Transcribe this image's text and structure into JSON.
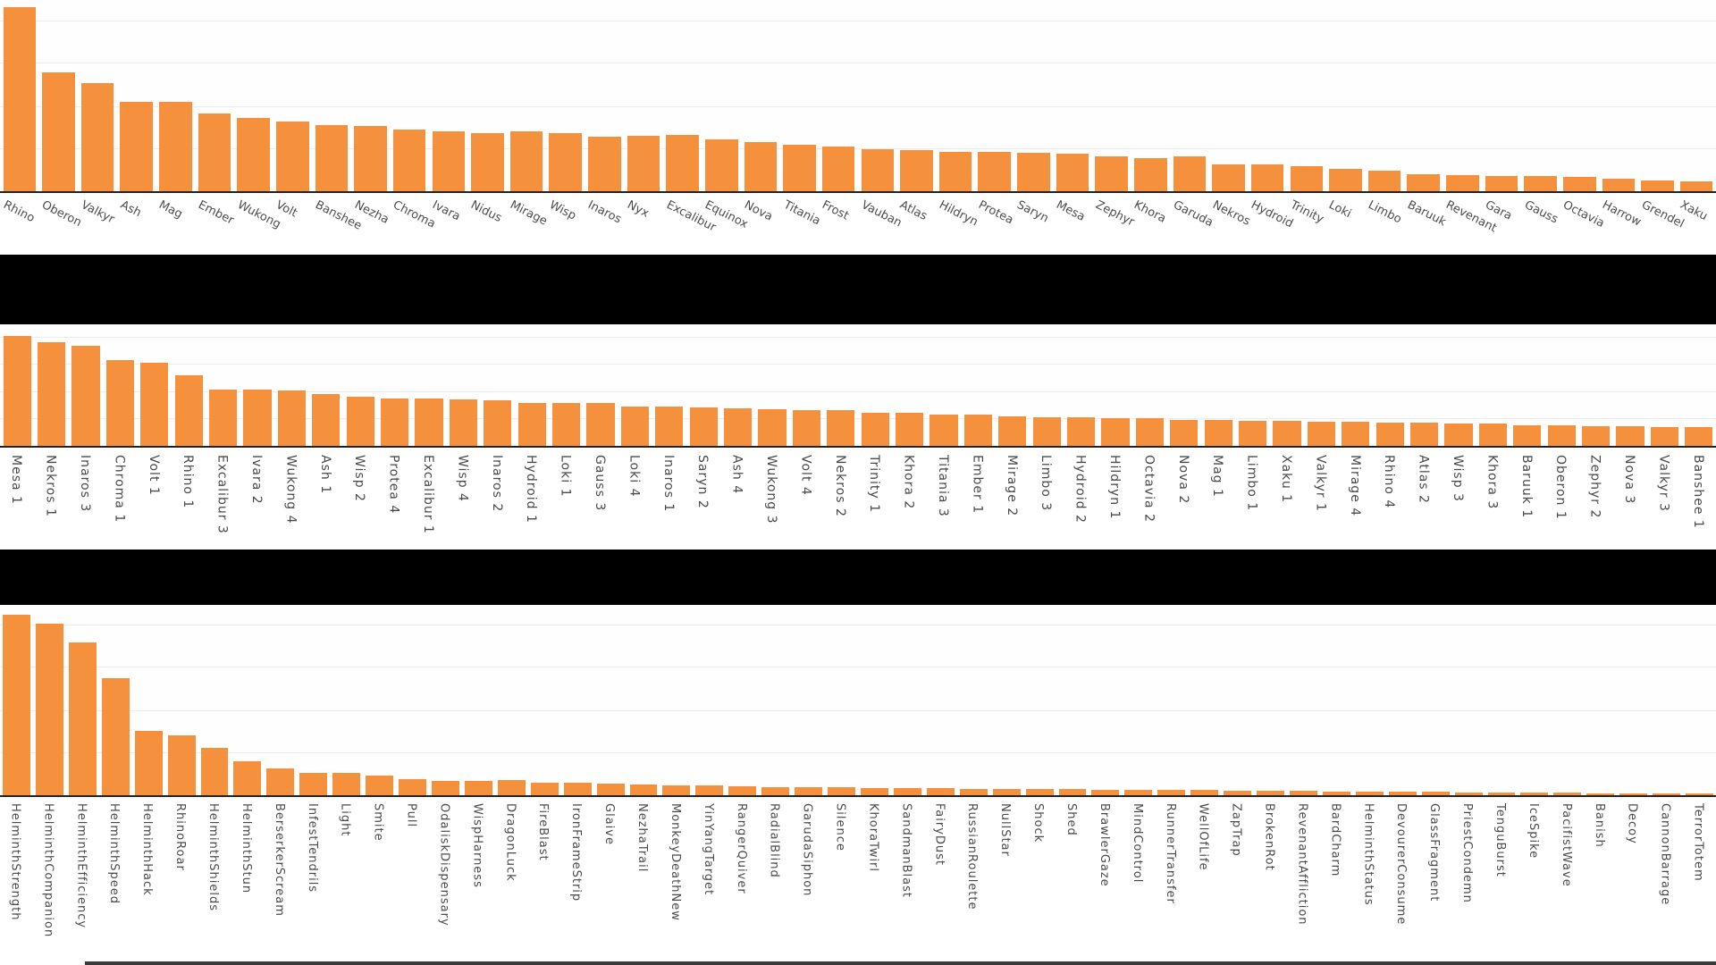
{
  "page": {
    "bar_color": "#F5913C",
    "axis_color": "#222222",
    "tick_label_color": "#4d4d4d",
    "redaction_band_color": "#000000",
    "background_color": "#ffffff",
    "note_axis_values": "no y-axis tick labels or chart titles visible; chart titles appear blacked out by solid bands"
  },
  "chart_data": [
    {
      "type": "bar",
      "title": "",
      "xlabel": "",
      "ylabel": "",
      "units": "relative bar height, percent of plot area (no y-axis labels visible)",
      "legend": "none",
      "grid": "faint horizontal gridlines",
      "tick_style": "rotated ~27deg",
      "categories": [
        "Rhino",
        "Oberon",
        "Valkyr",
        "Ash",
        "Mag",
        "Ember",
        "Wukong",
        "Volt",
        "Banshee",
        "Nezha",
        "Chroma",
        "Ivara",
        "Nidus",
        "Mirage",
        "Wisp",
        "Inaros",
        "Nyx",
        "Excalibur",
        "Equinox",
        "Nova",
        "Titania",
        "Frost",
        "Vauban",
        "Atlas",
        "Hildryn",
        "Protea",
        "Saryn",
        "Mesa",
        "Zephyr",
        "Khora",
        "Garuda",
        "Nekros",
        "Hydroid",
        "Trinity",
        "Loki",
        "Limbo",
        "Baruuk",
        "Revenant",
        "Gara",
        "Gauss",
        "Octavia",
        "Harrow",
        "Grendel",
        "Xaku"
      ],
      "values": [
        96.3,
        62.0,
        56.5,
        46.8,
        46.8,
        40.7,
        38.4,
        36.6,
        34.7,
        34.3,
        32.4,
        31.5,
        30.6,
        31.5,
        30.6,
        28.7,
        29.2,
        29.6,
        27.3,
        25.9,
        24.1,
        23.6,
        22.2,
        21.3,
        20.8,
        20.8,
        19.9,
        19.4,
        18.1,
        17.1,
        18.1,
        13.9,
        13.9,
        13.0,
        11.6,
        10.6,
        8.8,
        8.3,
        7.9,
        7.9,
        7.4,
        6.5,
        5.6,
        5.1
      ]
    },
    {
      "type": "bar",
      "title": "",
      "xlabel": "",
      "ylabel": "",
      "units": "relative bar height, percent of plot area (no y-axis labels visible)",
      "legend": "none",
      "grid": "faint horizontal gridlines",
      "tick_style": "vertical, reading downward",
      "categories": [
        "Mesa 1",
        "Nekros 1",
        "Inaros 3",
        "Chroma 1",
        "Volt 1",
        "Rhino 1",
        "Excalibur 3",
        "Ivara 2",
        "Wukong 4",
        "Ash 1",
        "Wisp 2",
        "Protea 4",
        "Excalibur 1",
        "Wisp 4",
        "Inaros 2",
        "Hydroid 1",
        "Loki 1",
        "Gauss 3",
        "Loki 4",
        "Inaros 1",
        "Saryn 2",
        "Ash 4",
        "Wukong 3",
        "Volt 4",
        "Nekros 2",
        "Trinity 1",
        "Khora 2",
        "Titania 3",
        "Ember 1",
        "Mirage 2",
        "Limbo 3",
        "Hydroid 2",
        "Hildryn 1",
        "Octavia 2",
        "Nova 2",
        "Mag 1",
        "Limbo 1",
        "Xaku 1",
        "Valkyr 1",
        "Mirage 4",
        "Rhino 4",
        "Atlas 2",
        "Wisp 3",
        "Khora 3",
        "Baruuk 1",
        "Oberon 1",
        "Zephyr 2",
        "Nova 3",
        "Valkyr 3",
        "Banshee 1"
      ],
      "values": [
        90.6,
        85.5,
        82.6,
        70.3,
        68.1,
        58.0,
        46.4,
        46.4,
        45.7,
        42.8,
        40.6,
        39.1,
        39.1,
        38.4,
        37.7,
        35.5,
        35.5,
        35.5,
        32.6,
        32.6,
        31.9,
        31.2,
        30.4,
        29.7,
        29.7,
        27.5,
        27.5,
        26.1,
        26.1,
        24.6,
        23.9,
        23.2,
        22.5,
        22.5,
        21.7,
        21.7,
        20.3,
        20.3,
        19.6,
        19.6,
        18.8,
        18.8,
        18.1,
        18.1,
        16.7,
        16.7,
        15.9,
        15.9,
        15.2,
        15.2
      ]
    },
    {
      "type": "bar",
      "title": "",
      "xlabel": "",
      "ylabel": "",
      "units": "relative bar height, percent of plot area (no y-axis labels visible)",
      "legend": "none",
      "grid": "faint horizontal gridlines",
      "tick_style": "vertical, reading downward",
      "categories": [
        "HelminthStrength",
        "HelminthCompanion",
        "HelminthEfficiency",
        "HelminthSpeed",
        "HelminthHack",
        "RhinoRoar",
        "HelminthShields",
        "HelminthStun",
        "BerserkerScream",
        "InfestTendrils",
        "Light",
        "Smite",
        "Pull",
        "OdaliskDispensary",
        "WispHarness",
        "DragonLuck",
        "FireBlast",
        "IronFrameStrip",
        "Glaive",
        "NezhaTrail",
        "MonkeyDeathNew",
        "YinYangTarget",
        "RangerQuiver",
        "RadialBlind",
        "GarudaSiphon",
        "Silence",
        "KhoraTwirl",
        "SandmanBlast",
        "FairyDust",
        "RussianRoulette",
        "NullStar",
        "Shock",
        "Shed",
        "BrawlerGaze",
        "MindControl",
        "RunnerTransfer",
        "WellOfLife",
        "ZapTrap",
        "BrokenRot",
        "RevenantAffliction",
        "BardCharm",
        "HelminthStatus",
        "DevourerConsume",
        "GlassFragment",
        "PriestCondemn",
        "TenguBurst",
        "IceSpike",
        "PacifistWave",
        "Banish",
        "Decoy",
        "CannonBarrage",
        "TerrorTotem"
      ],
      "values": [
        94.9,
        90.2,
        80.5,
        61.4,
        34.0,
        31.6,
        25.1,
        17.7,
        14.0,
        11.6,
        11.6,
        10.2,
        8.4,
        7.4,
        7.4,
        7.9,
        6.5,
        6.5,
        6.0,
        5.6,
        5.1,
        5.1,
        4.7,
        4.2,
        4.2,
        4.2,
        3.7,
        3.7,
        3.7,
        3.3,
        3.3,
        3.3,
        3.3,
        2.8,
        2.8,
        2.8,
        2.8,
        2.3,
        2.3,
        2.3,
        1.9,
        1.9,
        1.9,
        1.9,
        1.4,
        1.4,
        1.4,
        1.4,
        0.9,
        0.9,
        0.9,
        0.9
      ]
    }
  ]
}
